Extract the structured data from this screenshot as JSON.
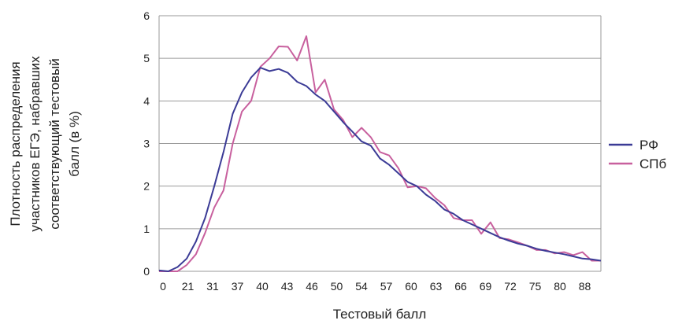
{
  "chart_data": {
    "type": "line",
    "xlabel": "Тестовый балл",
    "ylabel_lines": [
      "Плотность распределения",
      "участников ЕГЭ, набравших",
      "соответствующий тестовый",
      "балл (в %)"
    ],
    "x_tick_labels": [
      "0",
      "21",
      "31",
      "37",
      "40",
      "43",
      "46",
      "50",
      "54",
      "57",
      "60",
      "63",
      "66",
      "69",
      "72",
      "75",
      "80",
      "88"
    ],
    "ylim": [
      0,
      6
    ],
    "yticks": [
      0,
      1,
      2,
      3,
      4,
      5,
      6
    ],
    "grid": "horizontal",
    "legend": "right",
    "x_points": 49,
    "series": [
      {
        "name": "РФ",
        "color": "#3b3b96",
        "values": [
          0.02,
          0.0,
          0.1,
          0.3,
          0.7,
          1.25,
          2.0,
          2.8,
          3.7,
          4.2,
          4.55,
          4.78,
          4.7,
          4.75,
          4.66,
          4.45,
          4.35,
          4.15,
          4.0,
          3.75,
          3.5,
          3.28,
          3.05,
          2.95,
          2.65,
          2.5,
          2.3,
          2.1,
          2.0,
          1.8,
          1.65,
          1.45,
          1.35,
          1.2,
          1.1,
          1.0,
          0.9,
          0.8,
          0.72,
          0.65,
          0.6,
          0.53,
          0.48,
          0.44,
          0.4,
          0.35,
          0.3,
          0.28,
          0.25
        ]
      },
      {
        "name": "СПб",
        "color": "#c8609e",
        "values": [
          0.0,
          0.0,
          0.0,
          0.15,
          0.4,
          0.9,
          1.5,
          1.9,
          3.0,
          3.75,
          4.0,
          4.8,
          5.0,
          5.28,
          5.27,
          4.95,
          5.52,
          4.2,
          4.5,
          3.8,
          3.55,
          3.15,
          3.37,
          3.15,
          2.8,
          2.72,
          2.42,
          1.97,
          2.0,
          1.95,
          1.72,
          1.55,
          1.25,
          1.2,
          1.2,
          0.88,
          1.15,
          0.78,
          0.75,
          0.68,
          0.6,
          0.5,
          0.5,
          0.42,
          0.45,
          0.38,
          0.45,
          0.25,
          0.25
        ]
      }
    ]
  }
}
